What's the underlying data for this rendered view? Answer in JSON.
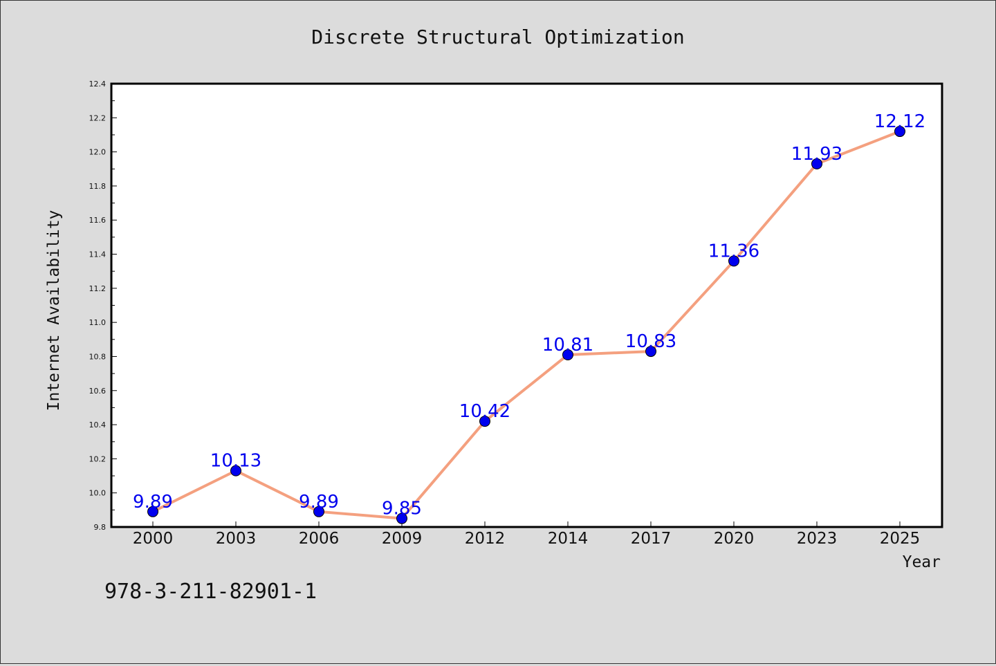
{
  "chart_data": {
    "type": "line",
    "title": "Discrete Structural Optimization",
    "xlabel": "Year",
    "ylabel": "Internet Availability",
    "categories": [
      "2000",
      "2003",
      "2006",
      "2009",
      "2012",
      "2014",
      "2017",
      "2020",
      "2023",
      "2025"
    ],
    "series": [
      {
        "values": [
          9.89,
          10.13,
          9.89,
          9.85,
          10.42,
          10.81,
          10.83,
          11.36,
          11.93,
          12.12
        ],
        "labels": [
          "9.89",
          "10.13",
          "9.89",
          "9.85",
          "10.42",
          "10.81",
          "10.83",
          "11.36",
          "11.93",
          "12.12"
        ]
      }
    ],
    "ylim": [
      9.8,
      12.4
    ],
    "yticks": [
      "9.8",
      "10.0",
      "10.2",
      "10.4",
      "10.6",
      "10.8",
      "11.0",
      "11.2",
      "11.4",
      "11.6",
      "11.8",
      "12.0",
      "12.2",
      "12.4"
    ],
    "grid": false,
    "legend": "none",
    "colors": {
      "line": "#f4a07f",
      "marker": "#0000ee",
      "label": "#0000ee",
      "background": "#dcdcdc",
      "plot_background": "#ffffff"
    }
  },
  "footer_text": "978-3-211-82901-1"
}
